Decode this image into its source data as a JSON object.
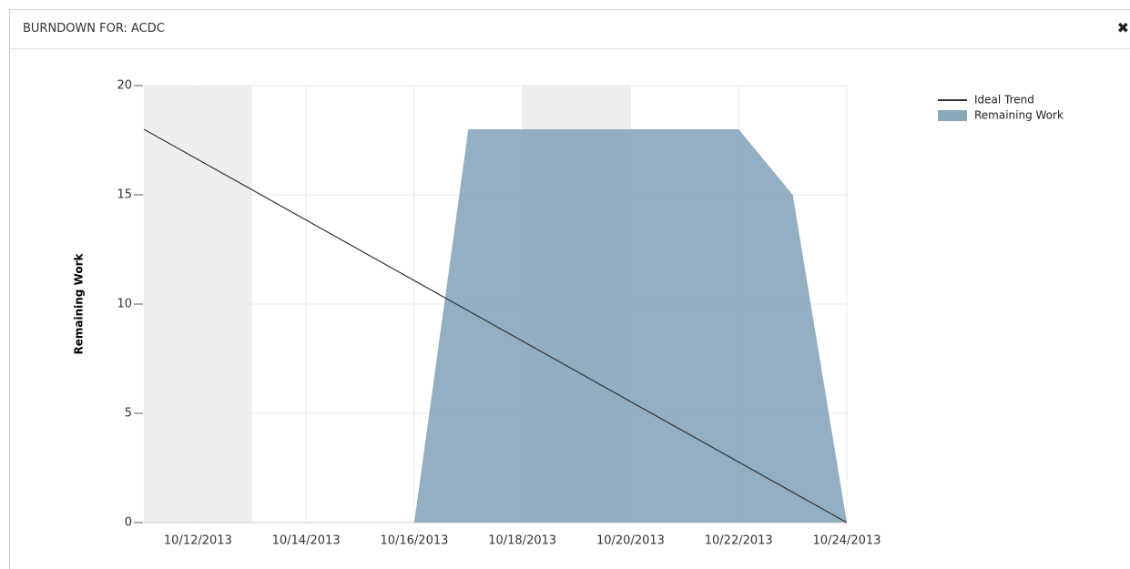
{
  "header": {
    "title": "BURNDOWN FOR: ACDC",
    "close": "✖"
  },
  "chart_data": {
    "type": "line",
    "ylabel": "Remaining Work",
    "xlim": [
      "10/11/2013",
      "10/24/2013"
    ],
    "xticks": [
      "10/12/2013",
      "10/14/2013",
      "10/16/2013",
      "10/18/2013",
      "10/20/2013",
      "10/22/2013",
      "10/24/2013"
    ],
    "ylim": [
      0,
      20
    ],
    "yticks": [
      0,
      5,
      10,
      15,
      20
    ],
    "grid": true,
    "shaded_ranges": [
      [
        "10/11/2013",
        "10/13/2013"
      ],
      [
        "10/18/2013",
        "10/20/2013"
      ]
    ],
    "shade_color": "#eeeeee",
    "legend": "top-right",
    "series": [
      {
        "name": "Ideal Trend",
        "style": "line",
        "color": "#333333",
        "x": [
          "10/11/2013",
          "10/24/2013"
        ],
        "values": [
          18,
          0
        ]
      },
      {
        "name": "Remaining Work",
        "style": "area",
        "color": "#8aa8bc",
        "x": [
          "10/16/2013",
          "10/17/2013",
          "10/18/2013",
          "10/19/2013",
          "10/20/2013",
          "10/21/2013",
          "10/22/2013",
          "10/23/2013",
          "10/24/2013"
        ],
        "values": [
          0,
          18,
          18,
          18,
          18,
          18,
          18,
          15,
          0
        ]
      }
    ]
  }
}
